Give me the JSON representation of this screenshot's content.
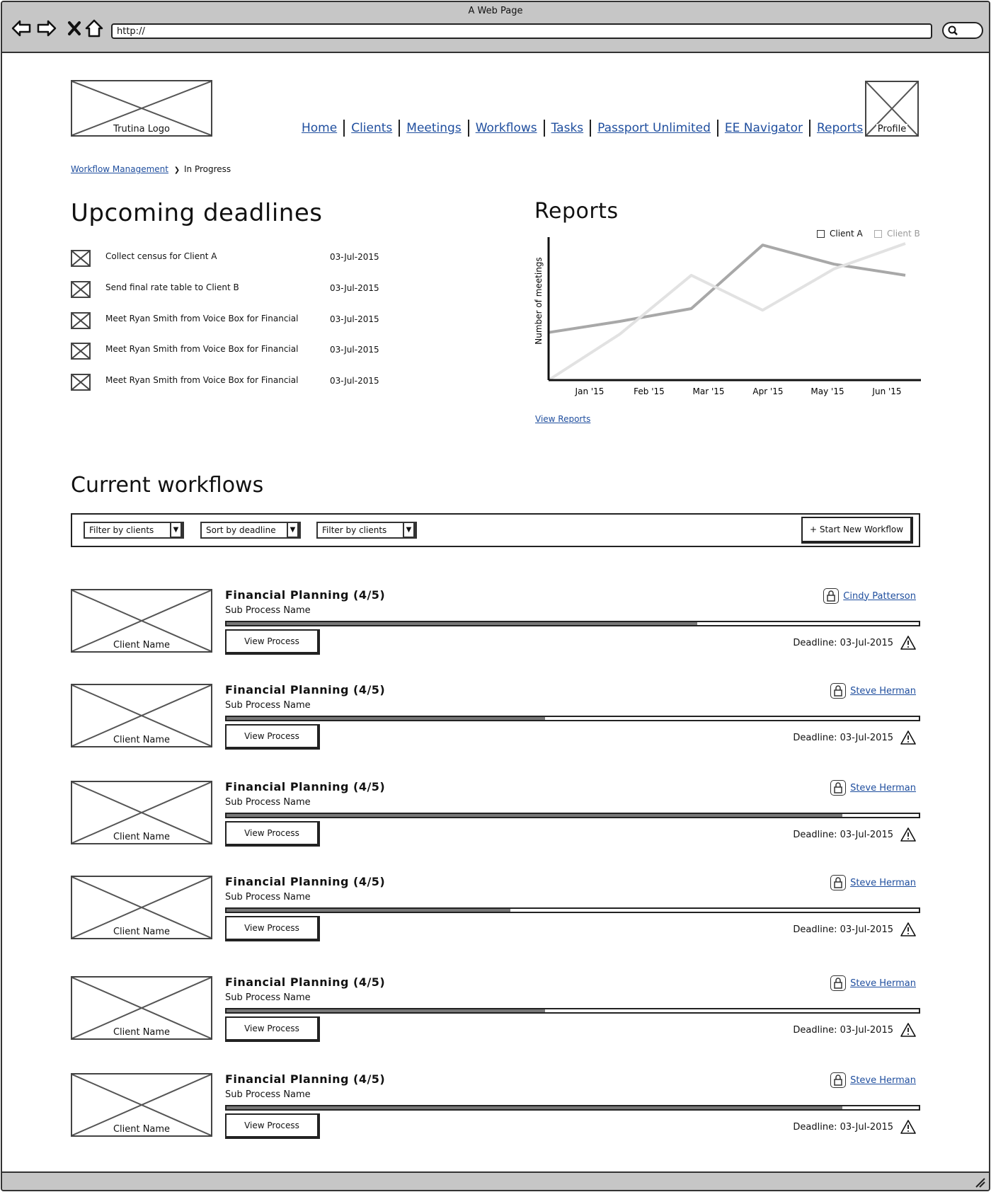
{
  "browser": {
    "title": "A Web Page",
    "url": "http://"
  },
  "header": {
    "logo_label": "Trutina Logo",
    "profile_label": "Profile",
    "nav": [
      "Home",
      "Clients",
      "Meetings",
      "Workflows",
      "Tasks",
      "Passport Unlimited",
      "EE Navigator",
      "Reports"
    ]
  },
  "breadcrumb": {
    "parent": "Workflow Management",
    "separator": "❯",
    "current": "In Progress"
  },
  "deadlines": {
    "title": "Upcoming deadlines",
    "items": [
      {
        "text": "Collect census for Client A",
        "date": "03-Jul-2015"
      },
      {
        "text": "Send final rate table to Client B",
        "date": "03-Jul-2015"
      },
      {
        "text": "Meet Ryan Smith from Voice Box for Financial",
        "date": "03-Jul-2015"
      },
      {
        "text": "Meet Ryan Smith from Voice Box for Financial",
        "date": "03-Jul-2015"
      },
      {
        "text": "Meet Ryan Smith from Voice Box for Financial",
        "date": "03-Jul-2015"
      }
    ]
  },
  "reports": {
    "title": "Reports",
    "view_link": "View Reports"
  },
  "chart_data": {
    "type": "line",
    "categories": [
      "Jan '15",
      "Feb '15",
      "Mar '15",
      "Apr '15",
      "May '15",
      "Jun '15"
    ],
    "x": [
      "Jan '15",
      "Feb '15",
      "Mar '15",
      "Apr '15",
      "May '15",
      "Jun '15"
    ],
    "series": [
      {
        "name": "Client A",
        "color": "#a8a8a8",
        "values": [
          3,
          3.7,
          4.5,
          8.5,
          7.3,
          6.6
        ]
      },
      {
        "name": "Client B",
        "color": "#e2e2e2",
        "values": [
          0,
          2.9,
          6.6,
          4.4,
          7.0,
          8.6
        ]
      }
    ],
    "title": "",
    "xlabel": "",
    "ylabel": "Number of meetings",
    "ylim": [
      0,
      9
    ],
    "grid": false,
    "legend": "top-right"
  },
  "workflows": {
    "title": "Current workflows",
    "filters": [
      "Filter by clients",
      "Sort by deadline",
      "Filter by clients"
    ],
    "start_button": "+ Start New Workflow",
    "view_button": "View Process",
    "client_label": "Client Name",
    "deadline_prefix": "Deadline: ",
    "items": [
      {
        "title": "Financial Planning (4/5)",
        "sub": "Sub Process Name",
        "owner": "Cindy Patterson",
        "deadline": "03-Jul-2015",
        "progress": 0.68
      },
      {
        "title": "Financial Planning (4/5)",
        "sub": "Sub Process Name",
        "owner": "Steve Herman",
        "deadline": "03-Jul-2015",
        "progress": 0.46
      },
      {
        "title": "Financial Planning (4/5)",
        "sub": "Sub Process Name",
        "owner": "Steve Herman",
        "deadline": "03-Jul-2015",
        "progress": 0.89
      },
      {
        "title": "Financial Planning (4/5)",
        "sub": "Sub Process Name",
        "owner": "Steve Herman",
        "deadline": "03-Jul-2015",
        "progress": 0.41
      },
      {
        "title": "Financial Planning (4/5)",
        "sub": "Sub Process Name",
        "owner": "Steve Herman",
        "deadline": "03-Jul-2015",
        "progress": 0.46
      },
      {
        "title": "Financial Planning (4/5)",
        "sub": "Sub Process Name",
        "owner": "Steve Herman",
        "deadline": "03-Jul-2015",
        "progress": 0.89
      }
    ]
  }
}
